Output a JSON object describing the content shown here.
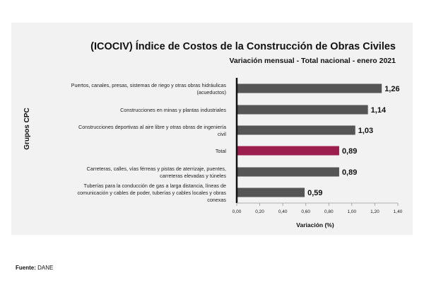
{
  "chart_data": {
    "type": "bar",
    "orientation": "horizontal",
    "title": "(ICOCIV) Índice de Costos de la Construcción de Obras Civiles",
    "subtitle": "Variación mensual - Total nacional - enero 2021",
    "xlabel": "Variación (%)",
    "ylabel": "Grupos CPC",
    "xlim": [
      0,
      1.4
    ],
    "ticks": [
      "0,00",
      "0,20",
      "0,40",
      "0,60",
      "0,80",
      "1,00",
      "1,20",
      "1,40"
    ],
    "tick_values": [
      0,
      0.2,
      0.4,
      0.6,
      0.8,
      1.0,
      1.2,
      1.4
    ],
    "categories": [
      [
        "Puertos, canales, presas, sistemas de riego y otras obras hidráulicas",
        "(acueductos)"
      ],
      [
        "Construcciones en minas y plantas industriales"
      ],
      [
        "Construcciones deportivas al aire libre y otras obras de ingeniería",
        "civil"
      ],
      [
        "Total"
      ],
      [
        "Carreteras, calles, vías férreas y pistas de aterrizaje, puentes,",
        "carreteras elevadas y túneles"
      ],
      [
        "Tuberías para la conducción de gas a larga distancia, líneas de",
        "comunicación y cables de poder, tuberías y cables locales y obras",
        "conexas"
      ]
    ],
    "values": [
      1.26,
      1.14,
      1.03,
      0.89,
      0.89,
      0.59
    ],
    "value_labels": [
      "1,26",
      "1,14",
      "1,03",
      "0,89",
      "0,89",
      "0,59"
    ],
    "highlight_index": 3,
    "colors": {
      "bar": "#555555",
      "highlight": "#9c1e4e",
      "axis": "#111111",
      "background": "#f2f2f2"
    }
  },
  "source": {
    "label": "Fuente:",
    "value": "DANE"
  }
}
